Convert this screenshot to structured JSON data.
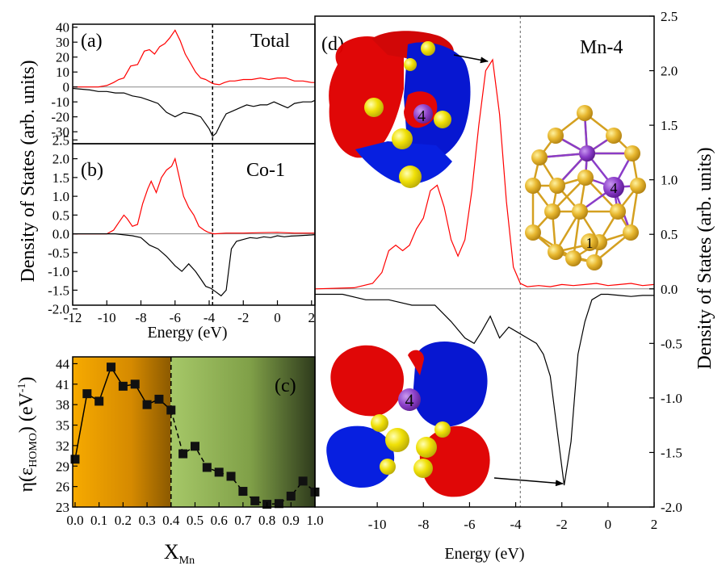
{
  "figure": {
    "left_ylabel": "Density of States (arb. units)",
    "right_ylabel": "Density of States (arb. units)"
  },
  "colors": {
    "spin_up": "#ff0000",
    "spin_down": "#000000",
    "lobe_red": "#e00000",
    "lobe_blue": "#0010d0",
    "atom_yellow": "#f0e000",
    "mn_purple": "#8a3cc8",
    "cluster_gold": "#e8b830",
    "cluster_bond": "#d4a020",
    "bg_orange": "#f5a800",
    "bg_green": "#9cc060"
  },
  "chart_data": [
    {
      "id": "a",
      "type": "line",
      "panel_label": "(a)",
      "label": "Total",
      "xlim": [
        -12,
        2.2
      ],
      "ylim": [
        -38,
        42
      ],
      "yticks": [
        "40",
        "30",
        "20",
        "10",
        "0",
        "-10",
        "-20",
        "-30"
      ],
      "fermi_level": -3.8,
      "series": [
        {
          "name": "spin-up",
          "x": [
            -12,
            -10.5,
            -10,
            -9.6,
            -9.3,
            -9.0,
            -8.6,
            -8.2,
            -7.8,
            -7.5,
            -7.2,
            -6.9,
            -6.6,
            -6.3,
            -6.0,
            -5.7,
            -5.4,
            -5.1,
            -4.8,
            -4.5,
            -4.2,
            -3.9,
            -3.7,
            -3.4,
            -3.1,
            -2.8,
            -2.5,
            -2.0,
            -1.5,
            -1.0,
            -0.5,
            0,
            0.5,
            1.0,
            1.5,
            2.0,
            2.2
          ],
          "y": [
            0,
            0,
            1,
            3,
            5,
            6,
            14,
            15,
            24,
            25,
            22,
            27,
            29,
            33,
            38,
            31,
            22,
            16,
            10,
            6,
            5,
            3,
            2,
            1.5,
            3,
            4,
            4,
            5,
            5,
            6,
            5,
            6,
            6,
            4,
            4,
            3,
            3
          ]
        },
        {
          "name": "spin-down",
          "x": [
            -12,
            -11,
            -10.5,
            -10,
            -9.5,
            -9.0,
            -8.5,
            -8.0,
            -7.5,
            -7.0,
            -6.5,
            -6.0,
            -5.5,
            -5.0,
            -4.5,
            -4.0,
            -3.8,
            -3.6,
            -3.3,
            -3.0,
            -2.6,
            -2.2,
            -1.8,
            -1.4,
            -1.0,
            -0.6,
            -0.2,
            0.2,
            0.6,
            1.0,
            1.5,
            2.0,
            2.2
          ],
          "y": [
            -1,
            -2,
            -3,
            -3,
            -4,
            -4,
            -6,
            -7,
            -9,
            -11,
            -17,
            -20,
            -17,
            -18,
            -20,
            -28,
            -33,
            -31,
            -24,
            -18,
            -16,
            -14,
            -12,
            -13,
            -12,
            -12,
            -10,
            -12,
            -14,
            -11,
            -10,
            -10,
            -9
          ]
        }
      ]
    },
    {
      "id": "b",
      "type": "line",
      "panel_label": "(b)",
      "label": "Co-1",
      "xlim": [
        -12,
        2.2
      ],
      "ylim": [
        -1.9,
        2.4
      ],
      "yticks": [
        "2.5",
        "2.0",
        "1.5",
        "1.0",
        "0.5",
        "0.0",
        "-0.5",
        "-1.0",
        "-1.5",
        "-2.0"
      ],
      "xticks": [
        "-12",
        "-10",
        "-8",
        "-6",
        "-4",
        "-2",
        "0",
        "2"
      ],
      "xlabel": "Energy (eV)",
      "fermi_level": -3.8,
      "series": [
        {
          "name": "spin-up",
          "x": [
            -12,
            -10,
            -9.6,
            -9.3,
            -9.0,
            -8.8,
            -8.5,
            -8.2,
            -7.9,
            -7.6,
            -7.4,
            -7.1,
            -6.8,
            -6.5,
            -6.2,
            -6.0,
            -5.8,
            -5.5,
            -5.2,
            -4.9,
            -4.6,
            -4.3,
            -4.1,
            -3.9,
            -3.7,
            -3.0,
            -2.0,
            -1.0,
            0,
            1.0,
            2.2
          ],
          "y": [
            0,
            0,
            0.1,
            0.3,
            0.5,
            0.4,
            0.2,
            0.25,
            0.8,
            1.2,
            1.4,
            1.1,
            1.5,
            1.7,
            1.8,
            2.0,
            1.6,
            1.0,
            0.7,
            0.5,
            0.2,
            0.1,
            0.05,
            0.02,
            0.0,
            0.02,
            0.02,
            0.03,
            0.04,
            0.02,
            0.02
          ]
        },
        {
          "name": "spin-down",
          "x": [
            -12,
            -9.5,
            -8.5,
            -8.0,
            -7.5,
            -7.0,
            -6.5,
            -6.0,
            -5.6,
            -5.2,
            -4.8,
            -4.5,
            -4.2,
            -3.9,
            -3.6,
            -3.3,
            -3.0,
            -2.7,
            -2.4,
            -2.0,
            -1.6,
            -1.2,
            -0.8,
            -0.4,
            0,
            0.4,
            0.8,
            1.2,
            1.6,
            2.0,
            2.2
          ],
          "y": [
            0,
            0,
            -0.05,
            -0.1,
            -0.3,
            -0.4,
            -0.6,
            -0.85,
            -1.0,
            -0.8,
            -1.0,
            -1.2,
            -1.4,
            -1.45,
            -1.55,
            -1.65,
            -1.5,
            -0.4,
            -0.2,
            -0.15,
            -0.1,
            -0.12,
            -0.08,
            -0.1,
            -0.05,
            -0.08,
            -0.06,
            -0.05,
            -0.04,
            -0.03,
            -0.02
          ]
        }
      ]
    },
    {
      "id": "c",
      "type": "scatter",
      "panel_label": "(c)",
      "xlabel": "X",
      "xlabel_sub": "Mn",
      "ylabel": "η(ε",
      "ylabel_sub": "HOMO",
      "ylabel_tail": ") (eV",
      "ylabel_sup": "-1",
      "ylabel_end": ")",
      "xlim": [
        -0.01,
        1.0
      ],
      "ylim": [
        23,
        45
      ],
      "xticks": [
        "0.0",
        "0.1",
        "0.2",
        "0.3",
        "0.4",
        "0.5",
        "0.6",
        "0.7",
        "0.8",
        "0.9",
        "1.0"
      ],
      "yticks": [
        "44",
        "41",
        "38",
        "35",
        "32",
        "29",
        "26",
        "23"
      ],
      "boundary_x": 0.4,
      "series": [
        {
          "name": "solid",
          "x": [
            0.0,
            0.05,
            0.1,
            0.15,
            0.2,
            0.25,
            0.3,
            0.35,
            0.4
          ],
          "y": [
            30.0,
            39.6,
            38.5,
            43.5,
            40.7,
            41.0,
            38.0,
            38.8,
            37.2
          ]
        },
        {
          "name": "dashed",
          "x": [
            0.4,
            0.45,
            0.5,
            0.55,
            0.6,
            0.65,
            0.7,
            0.75,
            0.8,
            0.85,
            0.9,
            0.95,
            1.0
          ],
          "y": [
            37.2,
            30.8,
            31.9,
            28.8,
            28.1,
            27.5,
            25.3,
            23.9,
            23.4,
            23.5,
            24.6,
            26.8,
            25.2
          ]
        }
      ]
    },
    {
      "id": "d",
      "type": "line",
      "panel_label": "(d)",
      "label": "Mn-4",
      "xlim": [
        -12.7,
        2.0
      ],
      "ylim": [
        -2.0,
        2.5
      ],
      "xticks": [
        "-10",
        "-8",
        "-6",
        "-4",
        "-2",
        "0",
        "2"
      ],
      "yticks": [
        "2.5",
        "2.0",
        "1.5",
        "1.0",
        "0.5",
        "0.0",
        "-0.5",
        "-1.0",
        "-1.5",
        "-2.0"
      ],
      "xlabel": "Energy (eV)",
      "fermi_level": -3.8,
      "atom_label": "4",
      "cluster_atom_labels": [
        "4",
        "1"
      ],
      "series": [
        {
          "name": "spin-up",
          "x": [
            -12.7,
            -11,
            -10.2,
            -9.8,
            -9.5,
            -9.2,
            -8.9,
            -8.6,
            -8.3,
            -8.0,
            -7.7,
            -7.4,
            -7.1,
            -6.8,
            -6.5,
            -6.2,
            -5.9,
            -5.6,
            -5.3,
            -5.0,
            -4.7,
            -4.4,
            -4.1,
            -3.8,
            -3.5,
            -3.0,
            -2.5,
            -2.0,
            -1.5,
            -1.0,
            -0.5,
            0,
            0.5,
            1.0,
            1.5,
            2.0
          ],
          "y": [
            0.0,
            0.01,
            0.05,
            0.15,
            0.35,
            0.4,
            0.35,
            0.4,
            0.55,
            0.65,
            0.9,
            0.95,
            0.75,
            0.45,
            0.3,
            0.45,
            0.9,
            1.5,
            2.0,
            2.1,
            1.6,
            0.8,
            0.2,
            0.05,
            0.02,
            0.03,
            0.02,
            0.04,
            0.03,
            0.04,
            0.05,
            0.03,
            0.04,
            0.05,
            0.03,
            0.04
          ]
        },
        {
          "name": "spin-down",
          "x": [
            -12.7,
            -11.5,
            -10.5,
            -9.5,
            -8.5,
            -7.5,
            -6.8,
            -6.2,
            -5.8,
            -5.5,
            -5.1,
            -4.7,
            -4.3,
            -3.9,
            -3.5,
            -3.1,
            -2.8,
            -2.5,
            -2.2,
            -1.9,
            -1.6,
            -1.3,
            -1.0,
            -0.7,
            -0.3,
            0,
            0.5,
            1.0,
            1.5,
            2.0
          ],
          "y": [
            -0.05,
            -0.05,
            -0.1,
            -0.1,
            -0.15,
            -0.15,
            -0.3,
            -0.45,
            -0.5,
            -0.4,
            -0.25,
            -0.45,
            -0.35,
            -0.4,
            -0.45,
            -0.5,
            -0.6,
            -0.8,
            -1.3,
            -1.8,
            -1.4,
            -0.6,
            -0.3,
            -0.1,
            -0.05,
            -0.05,
            -0.06,
            -0.07,
            -0.06,
            -0.06
          ]
        }
      ]
    }
  ]
}
